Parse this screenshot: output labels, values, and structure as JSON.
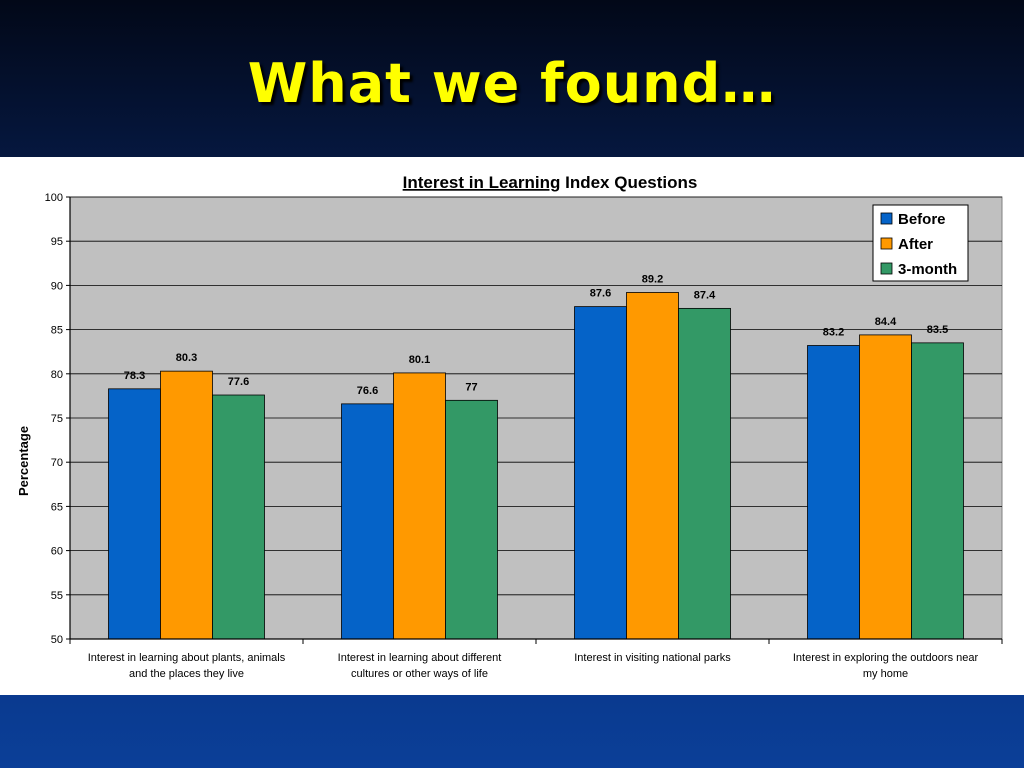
{
  "slide": {
    "title": "What we found…"
  },
  "colors": {
    "before": "#0563c8",
    "after": "#ff9900",
    "three_month": "#339966",
    "plot_bg": "#c0c0c0",
    "title_yellow": "#ffff00"
  },
  "chart_data": {
    "type": "bar",
    "title_underlined": "Interest in Learning",
    "title_rest": " Index Questions",
    "ylabel": "Percentage",
    "xlabel": "",
    "ylim": [
      50,
      100
    ],
    "yticks": [
      50,
      55,
      60,
      65,
      70,
      75,
      80,
      85,
      90,
      95,
      100
    ],
    "grid": true,
    "legend_position": "top-right",
    "categories": [
      [
        "Interest in learning about plants, animals",
        "and the places they live"
      ],
      [
        "Interest in learning about different",
        "cultures or other ways of life"
      ],
      [
        "Interest in visiting national parks"
      ],
      [
        "Interest in exploring the outdoors near",
        "my home"
      ]
    ],
    "series": [
      {
        "name": "Before",
        "color": "#0563c8",
        "values": [
          78.3,
          76.6,
          87.6,
          83.2
        ]
      },
      {
        "name": "After",
        "color": "#ff9900",
        "values": [
          80.3,
          80.1,
          89.2,
          84.4
        ]
      },
      {
        "name": "3-month",
        "color": "#339966",
        "values": [
          77.6,
          77,
          87.4,
          83.5
        ]
      }
    ]
  }
}
